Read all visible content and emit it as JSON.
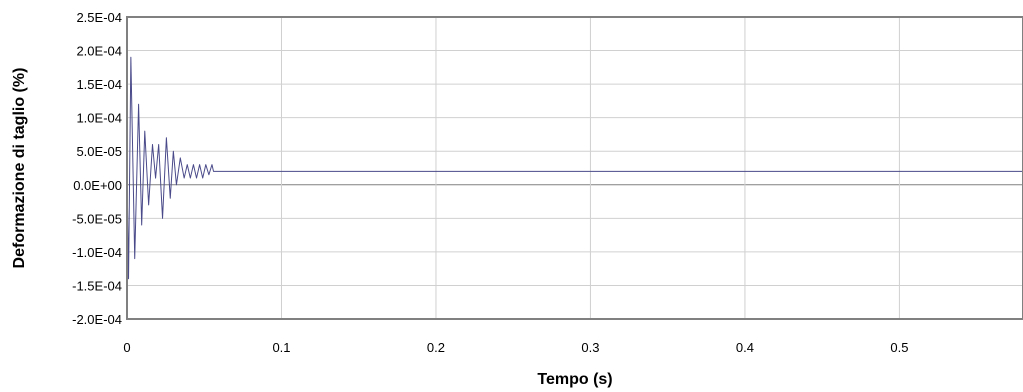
{
  "chart_data": {
    "type": "line",
    "title": "",
    "xlabel": "Tempo (s)",
    "ylabel": "Deformazione di taglio (%)",
    "xlim": [
      0,
      0.58
    ],
    "ylim": [
      -0.0002,
      0.00025
    ],
    "x_ticks": [
      0,
      0.1,
      0.2,
      0.3,
      0.4,
      0.5
    ],
    "x_tick_labels": [
      "0",
      "0.1",
      "0.2",
      "0.3",
      "0.4",
      "0.5"
    ],
    "y_ticks": [
      0.00025,
      0.0002,
      0.00015,
      0.0001,
      5e-05,
      0,
      -5e-05,
      -0.0001,
      -0.00015,
      -0.0002
    ],
    "y_tick_labels": [
      "2.5E-04",
      "2.0E-04",
      "1.5E-04",
      "1.0E-04",
      "5.0E-05",
      "0.0E+00",
      "-5.0E-05",
      "-1.0E-04",
      "-1.5E-04",
      "-2.0E-04"
    ],
    "grid": true,
    "legend": "none",
    "line_color": "#4a4a8a",
    "series": [
      {
        "x": [
          0,
          0.001,
          0.0025,
          0.005,
          0.0075,
          0.0095,
          0.0115,
          0.014,
          0.0165,
          0.0185,
          0.0205,
          0.023,
          0.0255,
          0.028,
          0.03,
          0.032,
          0.0345,
          0.037,
          0.039,
          0.041,
          0.043,
          0.045,
          0.047,
          0.049,
          0.051,
          0.053,
          0.055,
          0.056,
          0.058,
          0.1,
          0.2,
          0.3,
          0.4,
          0.5,
          0.58
        ],
        "y": [
          2e-05,
          -0.00014,
          0.00019,
          -0.00011,
          0.00012,
          -6e-05,
          8e-05,
          -3e-05,
          6e-05,
          1e-05,
          6e-05,
          -5e-05,
          7e-05,
          -2e-05,
          5e-05,
          0.0,
          4e-05,
          1e-05,
          3e-05,
          1e-05,
          3e-05,
          1e-05,
          3e-05,
          1e-05,
          3e-05,
          1.5e-05,
          3e-05,
          2e-05,
          2e-05,
          2e-05,
          2e-05,
          2e-05,
          2e-05,
          2e-05,
          2e-05
        ]
      }
    ]
  }
}
